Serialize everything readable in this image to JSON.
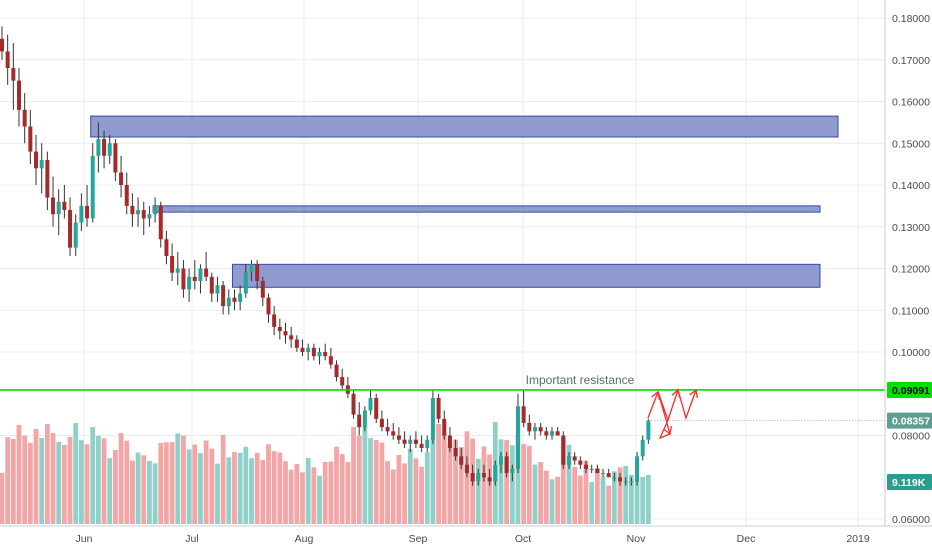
{
  "chart_data": {
    "type": "candlestick",
    "y_axis": {
      "ticks": [
        "0.18000",
        "0.17000",
        "0.16000",
        "0.15000",
        "0.14000",
        "0.13000",
        "0.12000",
        "0.11000",
        "0.10000",
        "0.08000",
        "0.06000"
      ],
      "ylim": [
        0.058,
        0.1825
      ]
    },
    "x_axis": {
      "ticks": [
        "Jun",
        "Jul",
        "Aug",
        "Sep",
        "Oct",
        "Nov",
        "Dec",
        "2019"
      ]
    },
    "grid": true,
    "price_bars": [
      [
        0.175,
        0.178,
        0.17,
        0.172
      ],
      [
        0.172,
        0.176,
        0.164,
        0.168
      ],
      [
        0.168,
        0.174,
        0.158,
        0.165
      ],
      [
        0.165,
        0.168,
        0.154,
        0.158
      ],
      [
        0.158,
        0.162,
        0.15,
        0.154
      ],
      [
        0.154,
        0.158,
        0.145,
        0.148
      ],
      [
        0.148,
        0.152,
        0.14,
        0.144
      ],
      [
        0.144,
        0.15,
        0.138,
        0.146
      ],
      [
        0.146,
        0.148,
        0.134,
        0.137
      ],
      [
        0.137,
        0.142,
        0.13,
        0.133
      ],
      [
        0.133,
        0.139,
        0.128,
        0.136
      ],
      [
        0.136,
        0.14,
        0.132,
        0.134
      ],
      [
        0.134,
        0.137,
        0.123,
        0.125
      ],
      [
        0.125,
        0.133,
        0.123,
        0.131
      ],
      [
        0.131,
        0.138,
        0.129,
        0.135
      ],
      [
        0.135,
        0.14,
        0.13,
        0.132
      ],
      [
        0.132,
        0.15,
        0.131,
        0.147
      ],
      [
        0.147,
        0.155,
        0.143,
        0.151
      ],
      [
        0.151,
        0.153,
        0.144,
        0.147
      ],
      [
        0.147,
        0.152,
        0.145,
        0.15
      ],
      [
        0.15,
        0.151,
        0.141,
        0.143
      ],
      [
        0.143,
        0.147,
        0.137,
        0.14
      ],
      [
        0.14,
        0.143,
        0.133,
        0.135
      ],
      [
        0.135,
        0.138,
        0.13,
        0.133
      ],
      [
        0.133,
        0.137,
        0.13,
        0.134
      ],
      [
        0.134,
        0.136,
        0.128,
        0.132
      ],
      [
        0.132,
        0.135,
        0.13,
        0.133
      ],
      [
        0.133,
        0.137,
        0.131,
        0.135
      ],
      [
        0.135,
        0.136,
        0.125,
        0.127
      ],
      [
        0.127,
        0.129,
        0.121,
        0.123
      ],
      [
        0.123,
        0.126,
        0.117,
        0.119
      ],
      [
        0.119,
        0.124,
        0.116,
        0.12
      ],
      [
        0.12,
        0.122,
        0.113,
        0.115
      ],
      [
        0.115,
        0.12,
        0.112,
        0.118
      ],
      [
        0.118,
        0.122,
        0.115,
        0.117
      ],
      [
        0.117,
        0.121,
        0.114,
        0.12
      ],
      [
        0.12,
        0.124,
        0.117,
        0.118
      ],
      [
        0.118,
        0.119,
        0.112,
        0.114
      ],
      [
        0.114,
        0.118,
        0.112,
        0.116
      ],
      [
        0.116,
        0.117,
        0.109,
        0.111
      ],
      [
        0.111,
        0.115,
        0.109,
        0.113
      ],
      [
        0.113,
        0.115,
        0.11,
        0.112
      ],
      [
        0.112,
        0.116,
        0.11,
        0.114
      ],
      [
        0.114,
        0.121,
        0.113,
        0.119
      ],
      [
        0.119,
        0.122,
        0.117,
        0.121
      ],
      [
        0.121,
        0.122,
        0.115,
        0.117
      ],
      [
        0.117,
        0.118,
        0.111,
        0.113
      ],
      [
        0.113,
        0.114,
        0.107,
        0.109
      ],
      [
        0.109,
        0.111,
        0.104,
        0.106
      ],
      [
        0.106,
        0.108,
        0.103,
        0.105
      ],
      [
        0.105,
        0.107,
        0.102,
        0.104
      ],
      [
        0.104,
        0.106,
        0.101,
        0.103
      ],
      [
        0.103,
        0.104,
        0.1,
        0.101
      ],
      [
        0.101,
        0.103,
        0.099,
        0.1
      ],
      [
        0.1,
        0.102,
        0.098,
        0.101
      ],
      [
        0.101,
        0.102,
        0.098,
        0.099
      ],
      [
        0.099,
        0.101,
        0.097,
        0.1
      ],
      [
        0.1,
        0.102,
        0.098,
        0.099
      ],
      [
        0.099,
        0.101,
        0.096,
        0.097
      ],
      [
        0.097,
        0.098,
        0.093,
        0.094
      ],
      [
        0.094,
        0.096,
        0.091,
        0.092
      ],
      [
        0.092,
        0.094,
        0.089,
        0.09
      ],
      [
        0.09,
        0.091,
        0.084,
        0.085
      ],
      [
        0.085,
        0.088,
        0.08,
        0.082
      ],
      [
        0.082,
        0.087,
        0.081,
        0.086
      ],
      [
        0.086,
        0.091,
        0.085,
        0.089
      ],
      [
        0.089,
        0.09,
        0.083,
        0.084
      ],
      [
        0.084,
        0.086,
        0.081,
        0.082
      ],
      [
        0.082,
        0.084,
        0.08,
        0.081
      ],
      [
        0.081,
        0.083,
        0.079,
        0.08
      ],
      [
        0.08,
        0.082,
        0.078,
        0.079
      ],
      [
        0.079,
        0.081,
        0.077,
        0.078
      ],
      [
        0.078,
        0.08,
        0.076,
        0.079
      ],
      [
        0.079,
        0.081,
        0.077,
        0.078
      ],
      [
        0.078,
        0.08,
        0.076,
        0.077
      ],
      [
        0.077,
        0.08,
        0.076,
        0.079
      ],
      [
        0.079,
        0.091,
        0.078,
        0.089
      ],
      [
        0.089,
        0.09,
        0.083,
        0.084
      ],
      [
        0.084,
        0.086,
        0.079,
        0.08
      ],
      [
        0.08,
        0.082,
        0.076,
        0.077
      ],
      [
        0.077,
        0.079,
        0.074,
        0.075
      ],
      [
        0.075,
        0.077,
        0.072,
        0.073
      ],
      [
        0.073,
        0.075,
        0.07,
        0.071
      ],
      [
        0.071,
        0.073,
        0.068,
        0.069
      ],
      [
        0.069,
        0.072,
        0.068,
        0.071
      ],
      [
        0.071,
        0.073,
        0.069,
        0.07
      ],
      [
        0.07,
        0.072,
        0.068,
        0.069
      ],
      [
        0.069,
        0.074,
        0.068,
        0.073
      ],
      [
        0.073,
        0.076,
        0.071,
        0.075
      ],
      [
        0.075,
        0.076,
        0.07,
        0.071
      ],
      [
        0.071,
        0.073,
        0.069,
        0.072
      ],
      [
        0.072,
        0.09,
        0.071,
        0.087
      ],
      [
        0.087,
        0.091,
        0.082,
        0.083
      ],
      [
        0.083,
        0.085,
        0.08,
        0.081
      ],
      [
        0.081,
        0.083,
        0.079,
        0.082
      ],
      [
        0.082,
        0.083,
        0.08,
        0.081
      ],
      [
        0.081,
        0.082,
        0.079,
        0.08
      ],
      [
        0.08,
        0.082,
        0.079,
        0.081
      ],
      [
        0.081,
        0.082,
        0.08,
        0.08
      ],
      [
        0.08,
        0.081,
        0.072,
        0.073
      ],
      [
        0.073,
        0.076,
        0.072,
        0.075
      ],
      [
        0.075,
        0.076,
        0.073,
        0.074
      ],
      [
        0.074,
        0.075,
        0.072,
        0.073
      ],
      [
        0.073,
        0.074,
        0.071,
        0.072
      ],
      [
        0.072,
        0.073,
        0.071,
        0.072
      ],
      [
        0.072,
        0.073,
        0.071,
        0.071
      ],
      [
        0.071,
        0.072,
        0.07,
        0.071
      ],
      [
        0.071,
        0.072,
        0.07,
        0.07
      ],
      [
        0.07,
        0.071,
        0.069,
        0.07
      ],
      [
        0.07,
        0.071,
        0.068,
        0.069
      ],
      [
        0.069,
        0.07,
        0.068,
        0.069
      ],
      [
        0.069,
        0.07,
        0.068,
        0.069
      ],
      [
        0.069,
        0.076,
        0.068,
        0.075
      ],
      [
        0.075,
        0.08,
        0.074,
        0.079
      ],
      [
        0.079,
        0.084,
        0.078,
        0.0836
      ]
    ],
    "volume_scale_max": 1,
    "zones": [
      {
        "from_bar": 16,
        "price_low": 0.1515,
        "price_high": 0.1565
      },
      {
        "from_bar": 27,
        "price_low": 0.1335,
        "price_high": 0.135
      },
      {
        "from_bar": 41,
        "price_low": 0.1155,
        "price_high": 0.121
      }
    ],
    "resistance_line": {
      "price": 0.09091,
      "color": "#00e000"
    },
    "annotation": "Important resistance",
    "price_tags": [
      {
        "label": "0.09091",
        "bg": "#00e000",
        "fg": "#000000"
      },
      {
        "label": "0.08357",
        "bg": "#5e9e93",
        "fg": "#ffffff"
      },
      {
        "label": "9.119K",
        "bg": "#2a9d8f",
        "fg": "#ffffff"
      }
    ],
    "colors": {
      "up": "#26a69a",
      "down": "#a52a2a",
      "wick": "#333333",
      "vol_up": "#8fd1c9",
      "vol_down": "#f4a6a6",
      "zone_fill": "#7b89c9",
      "zone_stroke": "#3b4a9c",
      "arrows": "#ff2a2a",
      "grid": "#e9ecef"
    }
  }
}
